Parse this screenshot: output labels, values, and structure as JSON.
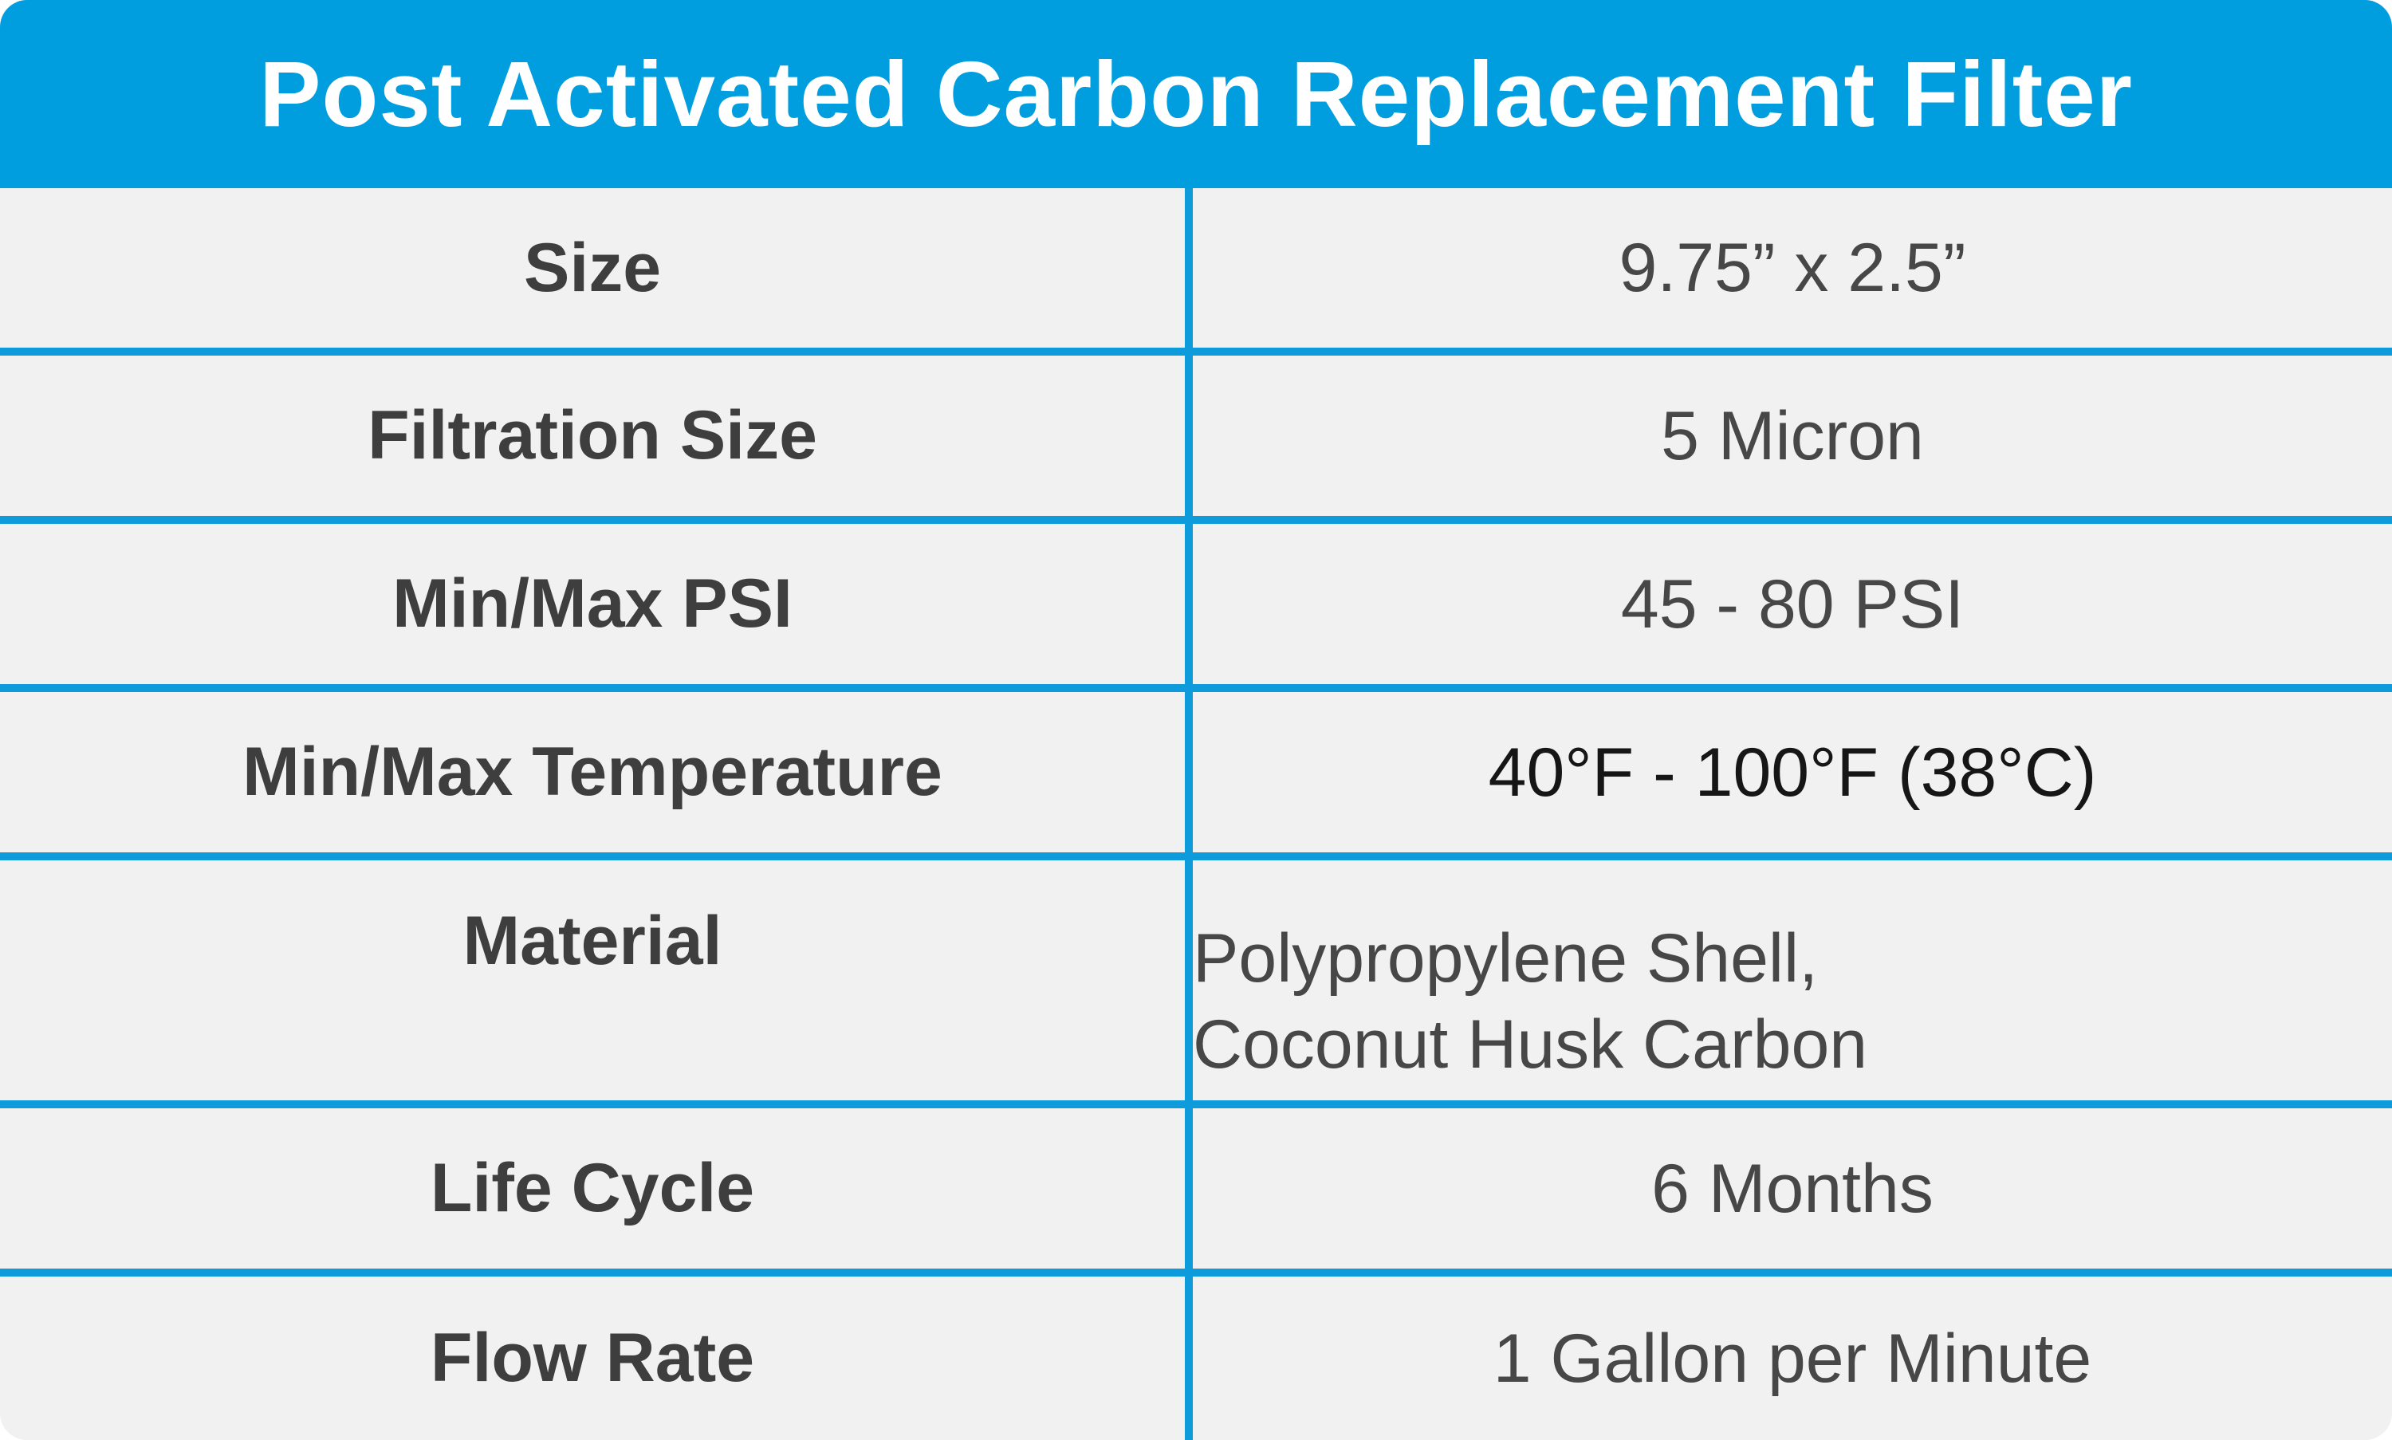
{
  "header": {
    "title": "Post Activated Carbon Replacement Filter"
  },
  "rows": [
    {
      "label": "Size",
      "value_lines": [
        "9.75” x 2.5”"
      ]
    },
    {
      "label": "Filtration Size",
      "value_lines": [
        "5 Micron"
      ]
    },
    {
      "label": "Min/Max PSI",
      "value_lines": [
        "45 - 80 PSI"
      ]
    },
    {
      "label": "Min/Max Temperature",
      "value_lines": [
        "40°F - 100°F (38°C)"
      ]
    },
    {
      "label": "Material",
      "value_lines": [
        "Polypropylene Shell,",
        "Coconut Husk Carbon"
      ]
    },
    {
      "label": "Life Cycle",
      "value_lines": [
        "6 Months"
      ]
    },
    {
      "label": "Flow Rate",
      "value_lines": [
        "1 Gallon per Minute"
      ]
    }
  ],
  "colors": {
    "header_bg": "#009ede",
    "divider": "#0d9bdb",
    "row_bg": "#f1f1f1",
    "label_text": "#3e3e3e",
    "value_text": "#474747"
  }
}
